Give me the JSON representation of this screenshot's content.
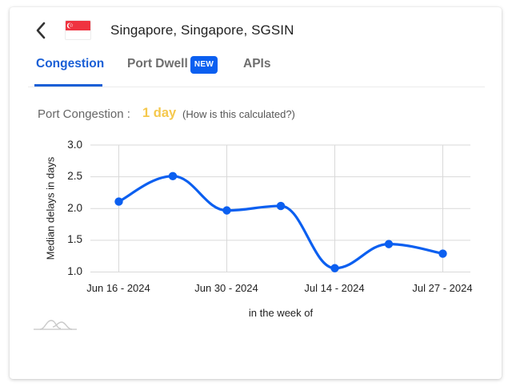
{
  "header": {
    "back_icon": "chevron-left-icon",
    "flag": "singapore-flag",
    "title": "Singapore, Singapore, SGSIN"
  },
  "tabs": [
    {
      "label": "Congestion",
      "active": true
    },
    {
      "label": "Port Dwell",
      "active": false,
      "badge": "NEW"
    },
    {
      "label": "APIs",
      "active": false
    }
  ],
  "metric": {
    "label": "Port Congestion :",
    "value": "1 day",
    "help_link": "(How is this calculated?)"
  },
  "colors": {
    "accent": "#1a5fd6",
    "badge": "#0b5ff0",
    "metric_value": "#f5c84c",
    "line": "#0b5ff0",
    "flag_red": "#ef3340"
  },
  "chart_data": {
    "type": "line",
    "title": "",
    "xlabel": "in the week of",
    "ylabel": "Median delays in days",
    "ylim": [
      1.0,
      3.0
    ],
    "yticks": [
      "3.0",
      "2.5",
      "2.0",
      "1.5",
      "1.0"
    ],
    "xtick_labels": [
      "Jun 16 - 2024",
      "Jun 30 - 2024",
      "Jul 14 - 2024",
      "Jul 27 - 2024"
    ],
    "grid": true,
    "legend": "none",
    "smooth": true,
    "x": [
      "Jun 16 - 2024",
      "Jun 23 - 2024",
      "Jun 30 - 2024",
      "Jul 07 - 2024",
      "Jul 14 - 2024",
      "Jul 21 - 2024",
      "Jul 27 - 2024"
    ],
    "series": [
      {
        "name": "Median delays in days",
        "values": [
          2.11,
          2.51,
          1.97,
          2.04,
          1.06,
          1.44,
          1.29
        ]
      }
    ]
  },
  "footer": {
    "logo_icon": "chart-logo-icon"
  }
}
